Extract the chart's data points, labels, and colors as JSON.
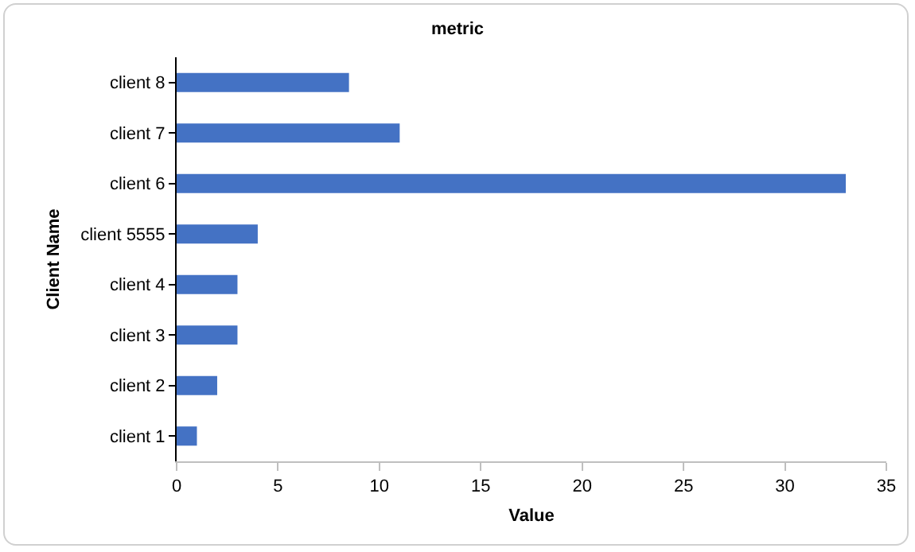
{
  "chart_data": {
    "type": "bar",
    "orientation": "horizontal",
    "title": "metric",
    "xlabel": "Value",
    "ylabel": "Client Name",
    "categories": [
      "client 8",
      "client 7",
      "client 6",
      "client 5555",
      "client 4",
      "client 3",
      "client 2",
      "client 1"
    ],
    "values": [
      8.5,
      11,
      33,
      4,
      3,
      3,
      2,
      1
    ],
    "color": "#4472c4",
    "xlim": [
      0,
      35
    ],
    "xticks": [
      0,
      5,
      10,
      15,
      20,
      25,
      30,
      35
    ],
    "grid": false,
    "legend": false
  }
}
